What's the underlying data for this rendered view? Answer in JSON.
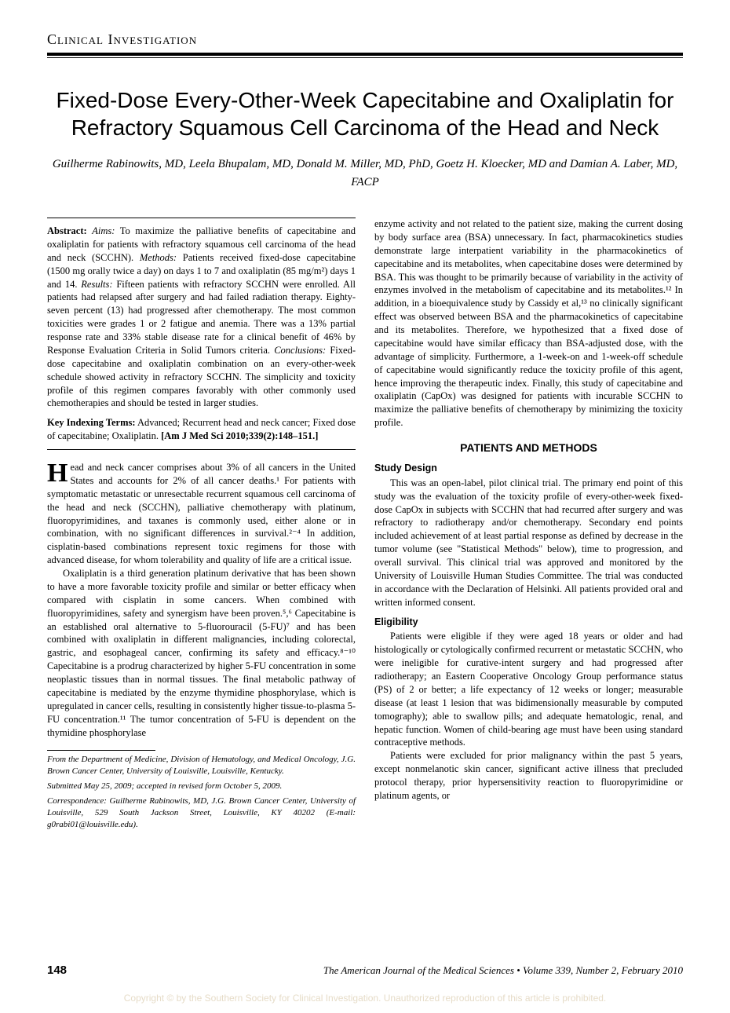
{
  "section_label": "Clinical Investigation",
  "title": "Fixed-Dose Every-Other-Week Capecitabine and Oxaliplatin for Refractory Squamous Cell Carcinoma of the Head and Neck",
  "authors": "Guilherme Rabinowits, MD, Leela Bhupalam, MD, Donald M. Miller, MD, PhD, Goetz H. Kloecker, MD and Damian A. Laber, MD, FACP",
  "abstract": {
    "label_abstract": "Abstract:",
    "label_aims": "Aims:",
    "aims": " To maximize the palliative benefits of capecitabine and oxaliplatin for patients with refractory squamous cell carcinoma of the head and neck (SCCHN). ",
    "label_methods": "Methods:",
    "methods": " Patients received fixed-dose capecitabine (1500 mg orally twice a day) on days 1 to 7 and oxaliplatin (85 mg/m²) days 1 and 14. ",
    "label_results": "Results:",
    "results": " Fifteen patients with refractory SCCHN were enrolled. All patients had relapsed after surgery and had failed radiation therapy. Eighty-seven percent (13) had progressed after chemotherapy. The most common toxicities were grades 1 or 2 fatigue and anemia. There was a 13% partial response rate and 33% stable disease rate for a clinical benefit of 46% by Response Evaluation Criteria in Solid Tumors criteria. ",
    "label_conclusions": "Conclusions:",
    "conclusions": " Fixed-dose capecitabine and oxaliplatin combination on an every-other-week schedule showed activity in refractory SCCHN. The simplicity and toxicity profile of this regimen compares favorably with other commonly used chemotherapies and should be tested in larger studies.",
    "key_label": "Key Indexing Terms:",
    "key_text": " Advanced; Recurrent head and neck cancer; Fixed dose of capecitabine; Oxaliplatin. ",
    "citation": "[Am J Med Sci 2010;339(2):148–151.]"
  },
  "body": {
    "dropcap": "H",
    "p1": "ead and neck cancer comprises about 3% of all cancers in the United States and accounts for 2% of all cancer deaths.¹ For patients with symptomatic metastatic or unresectable recurrent squamous cell carcinoma of the head and neck (SCCHN), palliative chemotherapy with platinum, fluoropyrimidines, and taxanes is commonly used, either alone or in combination, with no significant differences in survival.²⁻⁴ In addition, cisplatin-based combinations represent toxic regimens for those with advanced disease, for whom tolerability and quality of life are a critical issue.",
    "p2": "Oxaliplatin is a third generation platinum derivative that has been shown to have a more favorable toxicity profile and similar or better efficacy when compared with cisplatin in some cancers. When combined with fluoropyrimidines, safety and synergism have been proven.⁵,⁶ Capecitabine is an established oral alternative to 5-fluorouracil (5-FU)⁷ and has been combined with oxaliplatin in different malignancies, including colorectal, gastric, and esophageal cancer, confirming its safety and efficacy.⁸⁻¹⁰ Capecitabine is a prodrug characterized by higher 5-FU concentration in some neoplastic tissues than in normal tissues. The final metabolic pathway of capecitabine is mediated by the enzyme thymidine phosphorylase, which is upregulated in cancer cells, resulting in consistently higher tissue-to-plasma 5-FU concentration.¹¹ The tumor concentration of 5-FU is dependent on the thymidine phosphorylase",
    "p3": "enzyme activity and not related to the patient size, making the current dosing by body surface area (BSA) unnecessary. In fact, pharmacokinetics studies demonstrate large interpatient variability in the pharmacokinetics of capecitabine and its metabolites, when capecitabine doses were determined by BSA. This was thought to be primarily because of variability in the activity of enzymes involved in the metabolism of capecitabine and its metabolites.¹² In addition, in a bioequivalence study by Cassidy et al,¹³ no clinically significant effect was observed between BSA and the pharmacokinetics of capecitabine and its metabolites. Therefore, we hypothesized that a fixed dose of capecitabine would have similar efficacy than BSA-adjusted dose, with the advantage of simplicity. Furthermore, a 1-week-on and 1-week-off schedule of capecitabine would significantly reduce the toxicity profile of this agent, hence improving the therapeutic index. Finally, this study of capecitabine and oxaliplatin (CapOx) was designed for patients with incurable SCCHN to maximize the palliative benefits of chemotherapy by minimizing the toxicity profile."
  },
  "methods": {
    "heading": "PATIENTS AND METHODS",
    "study_design_h": "Study Design",
    "study_design": "This was an open-label, pilot clinical trial. The primary end point of this study was the evaluation of the toxicity profile of every-other-week fixed-dose CapOx in subjects with SCCHN that had recurred after surgery and was refractory to radiotherapy and/or chemotherapy. Secondary end points included achievement of at least partial response as defined by decrease in the tumor volume (see \"Statistical Methods\" below), time to progression, and overall survival. This clinical trial was approved and monitored by the University of Louisville Human Studies Committee. The trial was conducted in accordance with the Declaration of Helsinki. All patients provided oral and written informed consent.",
    "eligibility_h": "Eligibility",
    "eligibility_p1": "Patients were eligible if they were aged 18 years or older and had histologically or cytologically confirmed recurrent or metastatic SCCHN, who were ineligible for curative-intent surgery and had progressed after radiotherapy; an Eastern Cooperative Oncology Group performance status (PS) of 2 or better; a life expectancy of 12 weeks or longer; measurable disease (at least 1 lesion that was bidimensionally measurable by computed tomography); able to swallow pills; and adequate hematologic, renal, and hepatic function. Women of child-bearing age must have been using standard contraceptive methods.",
    "eligibility_p2": "Patients were excluded for prior malignancy within the past 5 years, except nonmelanotic skin cancer, significant active illness that precluded protocol therapy, prior hypersensitivity reaction to fluoropyrimidine or platinum agents, or"
  },
  "footnotes": {
    "affil": "From the Department of Medicine, Division of Hematology, and Medical Oncology, J.G. Brown Cancer Center, University of Louisville, Louisville, Kentucky.",
    "submitted": "Submitted May 25, 2009; accepted in revised form October 5, 2009.",
    "correspondence": "Correspondence: Guilherme Rabinowits, MD, J.G. Brown Cancer Center, University of Louisville, 529 South Jackson Street, Louisville, KY 40202 (E-mail: g0rabi01@louisville.edu)."
  },
  "footer": {
    "page": "148",
    "journal": "The American Journal of the Medical Sciences • Volume 339, Number 2, February 2010"
  },
  "copyright": "Copyright © by the Southern Society for Clinical Investigation. Unauthorized reproduction of this article is prohibited."
}
